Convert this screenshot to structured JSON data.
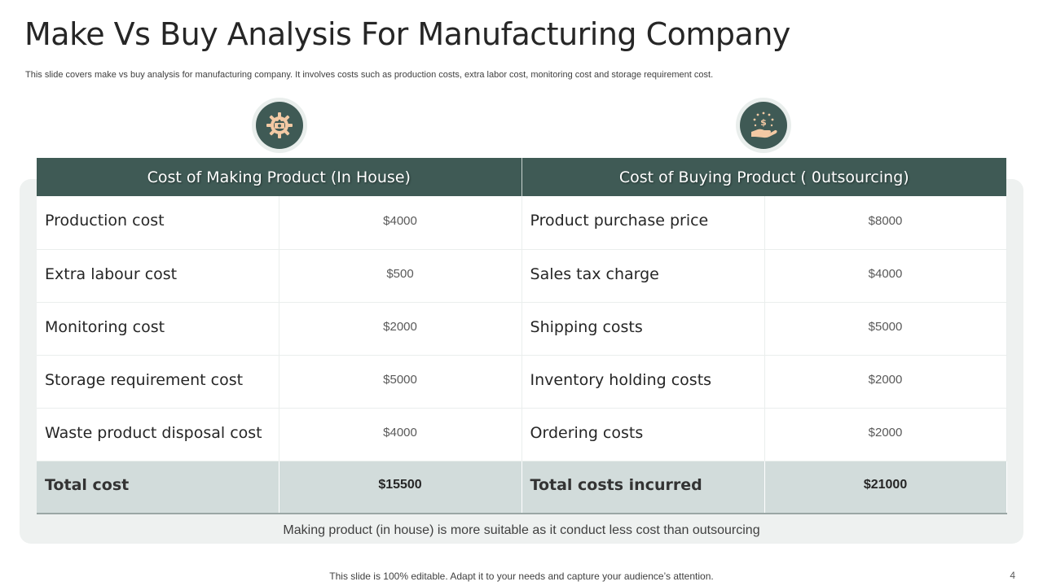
{
  "slide": {
    "title": "Make Vs Buy Analysis For Manufacturing Company",
    "subtitle": "This slide covers make vs buy analysis for manufacturing company. It involves costs such as production costs, extra labor cost, monitoring cost and storage requirement cost.",
    "conclusion": "Making product (in house) is more suitable as it conduct less cost than outsourcing",
    "footer": "This slide is 100% editable. Adapt it to your needs and capture your audience’s attention.",
    "page_number": "4"
  },
  "icons": {
    "left": "gear-money-icon",
    "right": "hand-dollar-icon",
    "icon_bg": "#3f5a55",
    "icon_fg": "#f3c9a4"
  },
  "colors": {
    "header_bg": "#3f5a55",
    "total_row_bg": "#d2dcdb",
    "panel_bg": "#eef1f0"
  },
  "table": {
    "headers": [
      "Cost of Making Product (In House)",
      "Cost of Buying Product ( 0utsourcing)"
    ],
    "rows": [
      {
        "make_label": "Production cost",
        "make_value": "$4000",
        "buy_label": "Product purchase price",
        "buy_value": "$8000"
      },
      {
        "make_label": "Extra labour cost",
        "make_value": "$500",
        "buy_label": "Sales tax charge",
        "buy_value": "$4000"
      },
      {
        "make_label": "Monitoring cost",
        "make_value": "$2000",
        "buy_label": "Shipping costs",
        "buy_value": "$5000"
      },
      {
        "make_label": "Storage requirement cost",
        "make_value": "$5000",
        "buy_label": "Inventory holding costs",
        "buy_value": "$2000"
      },
      {
        "make_label": "Waste product disposal cost",
        "make_value": "$4000",
        "buy_label": "Ordering costs",
        "buy_value": "$2000"
      }
    ],
    "total": {
      "make_label": "Total cost",
      "make_value": "$15500",
      "buy_label": "Total costs incurred",
      "buy_value": "$21000"
    }
  }
}
